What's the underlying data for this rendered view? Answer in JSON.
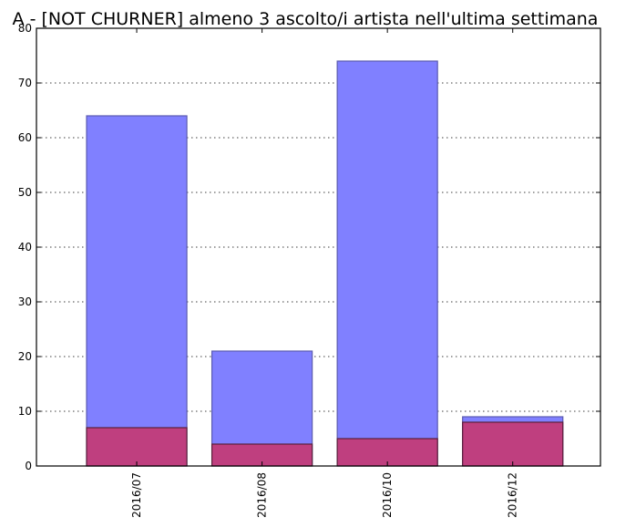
{
  "chart_data": {
    "type": "bar",
    "title": "A - [NOT CHURNER] almeno 3 ascolto/i artista nell'ultima settimana",
    "xlabel": "",
    "ylabel": "",
    "categories": [
      "2016/07",
      "2016/08",
      "2016/10",
      "2016/12"
    ],
    "ylim": [
      0,
      80
    ],
    "yticks": [
      "0",
      "10",
      "20",
      "30",
      "40",
      "50",
      "60",
      "70",
      "80"
    ],
    "grid": "horizontal dotted",
    "overlay": true,
    "series": [
      {
        "values": [
          64,
          21,
          74,
          9
        ],
        "color": "#8080ff",
        "edge": "#5a5ab0"
      },
      {
        "values": [
          7,
          4,
          5,
          8
        ],
        "color": "#bf3f7f",
        "edge": "#5a1f3a"
      }
    ]
  }
}
